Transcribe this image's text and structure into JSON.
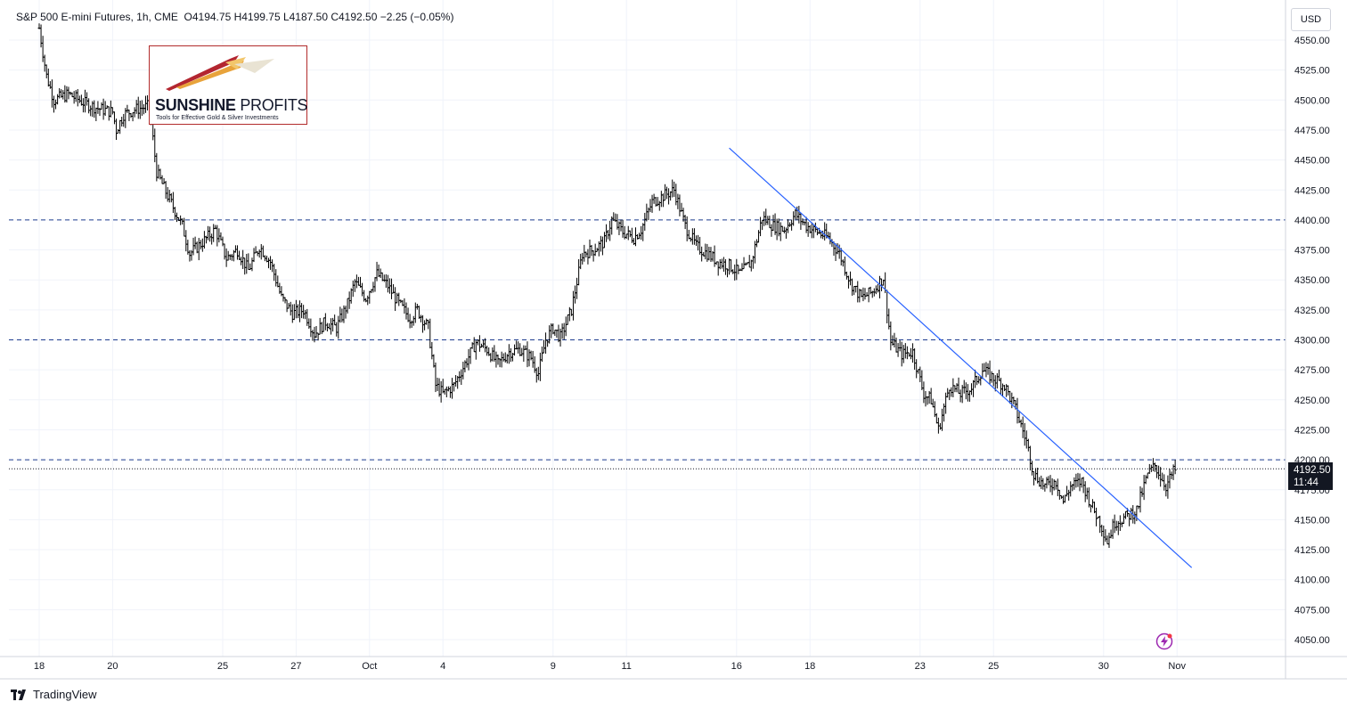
{
  "header": {
    "symbol": "S&P 500 E-mini Futures, 1h, CME",
    "ohlc": "O4194.75  H4199.75  L4187.50  C4192.50  −2.25 (−0.05%)"
  },
  "currency": "USD",
  "logo": {
    "main_bold": "SUNSHINE",
    "main_thin": " PROFITS",
    "tagline": "Tools for Effective Gold & Silver Investments"
  },
  "footer": {
    "brand": "TradingView"
  },
  "last_price": {
    "value": "4192.50",
    "countdown": "11:44"
  },
  "colors": {
    "candles": "#000000",
    "trendline": "#2962ff",
    "hlines": "#1e3d8f",
    "grid": "#f0f3fa",
    "label_bg": "#131722"
  },
  "chart_data": {
    "type": "ohlc",
    "title": "S&P 500 E-mini Futures, 1h, CME",
    "ylim": [
      4040,
      4570
    ],
    "yticks": [
      4050,
      4075,
      4100,
      4125,
      4150,
      4175,
      4200,
      4225,
      4250,
      4275,
      4300,
      4325,
      4350,
      4375,
      4400,
      4425,
      4450,
      4475,
      4500,
      4525,
      4550
    ],
    "ytick_labels": [
      "4050.00",
      "4075.00",
      "4100.00",
      "4125.00",
      "4150.00",
      "4175.00",
      "4200.00",
      "4225.00",
      "4250.00",
      "4275.00",
      "4300.00",
      "4325.00",
      "4350.00",
      "4375.00",
      "4400.00",
      "4425.00",
      "4450.00",
      "4475.00",
      "4500.00",
      "4525.00",
      "4550.00"
    ],
    "xticks": [
      {
        "label": "18",
        "day": 0
      },
      {
        "label": "20",
        "day": 2
      },
      {
        "label": "25",
        "day": 5
      },
      {
        "label": "27",
        "day": 7
      },
      {
        "label": "Oct",
        "day": 9
      },
      {
        "label": "4",
        "day": 11
      },
      {
        "label": "9",
        "day": 14
      },
      {
        "label": "11",
        "day": 16
      },
      {
        "label": "16",
        "day": 19
      },
      {
        "label": "18",
        "day": 21
      },
      {
        "label": "23",
        "day": 24
      },
      {
        "label": "25",
        "day": 26
      },
      {
        "label": "30",
        "day": 29
      },
      {
        "label": "Nov",
        "day": 31
      }
    ],
    "series": [
      {
        "name": "",
        "points": [
          [
            0,
            4560
          ],
          [
            0.2,
            4520
          ],
          [
            0.4,
            4500
          ],
          [
            0.8,
            4505
          ],
          [
            1.2,
            4498
          ],
          [
            1.6,
            4493
          ],
          [
            2.0,
            4490
          ],
          [
            2.1,
            4475
          ],
          [
            2.3,
            4488
          ],
          [
            2.6,
            4492
          ],
          [
            3.0,
            4495
          ],
          [
            3.2,
            4440
          ],
          [
            3.5,
            4420
          ],
          [
            3.9,
            4395
          ],
          [
            4.1,
            4372
          ],
          [
            4.4,
            4380
          ],
          [
            4.8,
            4392
          ],
          [
            5.1,
            4368
          ],
          [
            5.4,
            4375
          ],
          [
            5.7,
            4358
          ],
          [
            6.0,
            4378
          ],
          [
            6.3,
            4365
          ],
          [
            6.6,
            4335
          ],
          [
            6.9,
            4322
          ],
          [
            7.2,
            4325
          ],
          [
            7.5,
            4305
          ],
          [
            7.8,
            4315
          ],
          [
            8.1,
            4310
          ],
          [
            8.4,
            4330
          ],
          [
            8.6,
            4348
          ],
          [
            8.9,
            4335
          ],
          [
            9.2,
            4355
          ],
          [
            9.5,
            4345
          ],
          [
            9.8,
            4330
          ],
          [
            10.1,
            4318
          ],
          [
            10.3,
            4325
          ],
          [
            10.6,
            4310
          ],
          [
            10.8,
            4262
          ],
          [
            11.0,
            4255
          ],
          [
            11.3,
            4262
          ],
          [
            11.6,
            4280
          ],
          [
            11.9,
            4298
          ],
          [
            12.2,
            4292
          ],
          [
            12.5,
            4280
          ],
          [
            12.8,
            4290
          ],
          [
            13.1,
            4292
          ],
          [
            13.4,
            4285
          ],
          [
            13.6,
            4272
          ],
          [
            13.8,
            4300
          ],
          [
            14.0,
            4310
          ],
          [
            14.2,
            4302
          ],
          [
            14.5,
            4325
          ],
          [
            14.8,
            4372
          ],
          [
            15.1,
            4375
          ],
          [
            15.4,
            4382
          ],
          [
            15.6,
            4400
          ],
          [
            15.9,
            4390
          ],
          [
            16.2,
            4385
          ],
          [
            16.4,
            4392
          ],
          [
            16.7,
            4415
          ],
          [
            17.0,
            4420
          ],
          [
            17.3,
            4425
          ],
          [
            17.6,
            4395
          ],
          [
            17.9,
            4378
          ],
          [
            18.2,
            4372
          ],
          [
            18.5,
            4365
          ],
          [
            18.8,
            4362
          ],
          [
            19.1,
            4355
          ],
          [
            19.4,
            4365
          ],
          [
            19.7,
            4402
          ],
          [
            20.0,
            4395
          ],
          [
            20.3,
            4392
          ],
          [
            20.6,
            4405
          ],
          [
            20.9,
            4395
          ],
          [
            21.2,
            4390
          ],
          [
            21.5,
            4385
          ],
          [
            21.8,
            4372
          ],
          [
            22.1,
            4348
          ],
          [
            22.4,
            4335
          ],
          [
            22.7,
            4340
          ],
          [
            23.0,
            4352
          ],
          [
            23.2,
            4298
          ],
          [
            23.5,
            4288
          ],
          [
            23.8,
            4290
          ],
          [
            24.1,
            4255
          ],
          [
            24.3,
            4250
          ],
          [
            24.5,
            4225
          ],
          [
            24.8,
            4262
          ],
          [
            25.1,
            4255
          ],
          [
            25.4,
            4260
          ],
          [
            25.7,
            4275
          ],
          [
            26.0,
            4268
          ],
          [
            26.3,
            4262
          ],
          [
            26.6,
            4242
          ],
          [
            26.9,
            4215
          ],
          [
            27.1,
            4188
          ],
          [
            27.4,
            4178
          ],
          [
            27.7,
            4182
          ],
          [
            27.9,
            4165
          ],
          [
            28.1,
            4178
          ],
          [
            28.4,
            4182
          ],
          [
            28.7,
            4160
          ],
          [
            28.9,
            4148
          ],
          [
            29.1,
            4132
          ],
          [
            29.3,
            4148
          ],
          [
            29.6,
            4152
          ],
          [
            29.9,
            4158
          ],
          [
            30.2,
            4188
          ],
          [
            30.4,
            4195
          ],
          [
            30.7,
            4178
          ],
          [
            30.9,
            4190
          ],
          [
            31.0,
            4192.5
          ]
        ]
      }
    ],
    "hlines": [
      4400,
      4300,
      4200
    ],
    "trendline": [
      [
        18.8,
        4460
      ],
      [
        31.4,
        4110
      ]
    ],
    "last_value": 4192.5,
    "grid": true
  }
}
